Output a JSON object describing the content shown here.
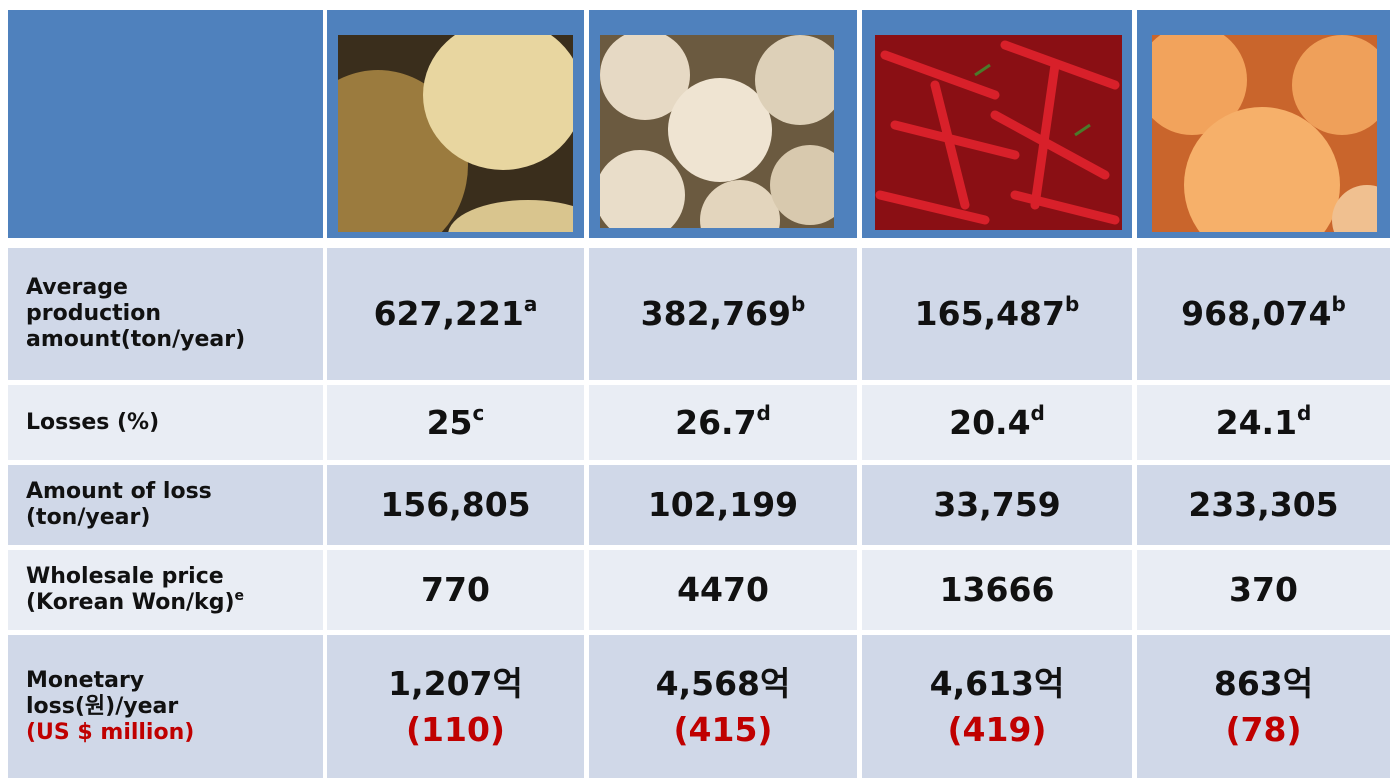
{
  "table": {
    "rows": [
      {
        "label": [
          "Average",
          "production",
          "amount(ton/year)"
        ],
        "cells": [
          {
            "value": "627,221",
            "note": "a"
          },
          {
            "value": "382,769",
            "note": "b"
          },
          {
            "value": "165,487",
            "note": "b"
          },
          {
            "value": "968,074",
            "note": "b"
          }
        ]
      },
      {
        "label": [
          "Losses (%)"
        ],
        "cells": [
          {
            "value": "25",
            "note": "c"
          },
          {
            "value": "26.7",
            "note": "d"
          },
          {
            "value": "20.4",
            "note": "d"
          },
          {
            "value": "24.1",
            "note": "d"
          }
        ]
      },
      {
        "label": [
          "Amount of loss",
          "(ton/year)"
        ],
        "cells": [
          {
            "value": "156,805"
          },
          {
            "value": "102,199"
          },
          {
            "value": "33,759"
          },
          {
            "value": "233,305"
          }
        ]
      },
      {
        "label": [
          "Wholesale price",
          "(Korean Won/kg)"
        ],
        "label_note": "e",
        "cells": [
          {
            "value": "770"
          },
          {
            "value": "4470"
          },
          {
            "value": "13666"
          },
          {
            "value": "370"
          }
        ]
      },
      {
        "label": [
          "Monetary",
          "loss(원)/year"
        ],
        "label_sub": "(US $ million)",
        "cells": [
          {
            "value": "1,207억",
            "sub": "(110)"
          },
          {
            "value": "4,568억",
            "sub": "(415)"
          },
          {
            "value": "4,613억",
            "sub": "(419)"
          },
          {
            "value": "863억",
            "sub": "(78)"
          }
        ]
      }
    ]
  }
}
